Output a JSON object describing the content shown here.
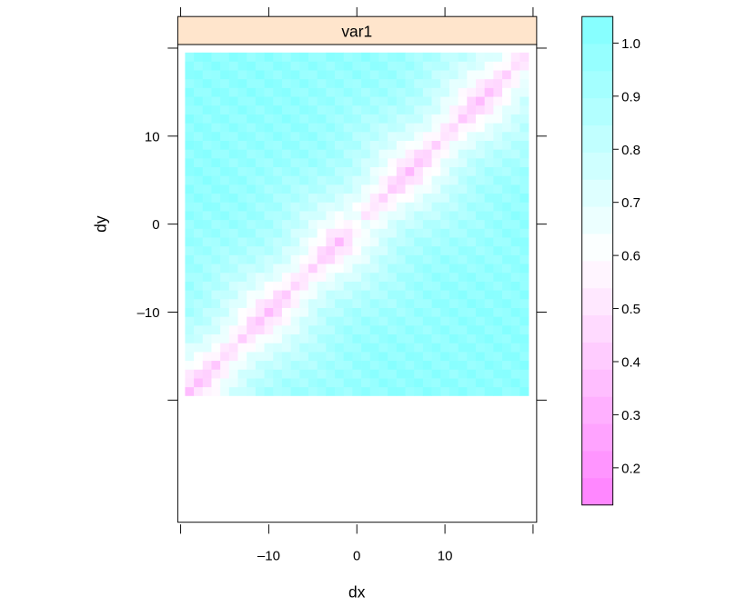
{
  "chart_data": {
    "type": "heatmap",
    "panel_title": "var1",
    "xlabel": "dx",
    "ylabel": "dy",
    "xlim": [
      -20,
      20
    ],
    "ylim": [
      -20,
      20
    ],
    "x_ticks": [
      -10,
      0,
      10
    ],
    "x_tick_labels": [
      "–10",
      "0",
      "10"
    ],
    "y_ticks": [
      -10,
      0,
      10
    ],
    "y_tick_labels": [
      "–10",
      "0",
      "10"
    ],
    "grid": false,
    "legend": "right colorbar",
    "colorbar": {
      "range": [
        0.13,
        1.05
      ],
      "ticks": [
        0.2,
        0.3,
        0.4,
        0.5,
        0.6,
        0.7,
        0.8,
        0.9,
        1.0
      ],
      "tick_labels": [
        "0.2",
        "0.3",
        "0.4",
        "0.5",
        "0.6",
        "0.7",
        "0.8",
        "0.9",
        "1.0"
      ],
      "low_color": "#ff80ff",
      "mid_color": "#ffffff",
      "high_color": "#80ffff"
    },
    "grid_cells": {
      "x_range": [
        -19,
        19
      ],
      "y_range": [
        -19,
        19
      ],
      "step": 1,
      "description_of_values": "Correlation-like surface: lowest (~0.35-0.5) along diagonal dy=dx band, near 0.6 at origin, rising to ~0.9-1.0 away from the diagonal."
    },
    "strip_color": "#ffe5cc",
    "frame_color": "#000000"
  }
}
